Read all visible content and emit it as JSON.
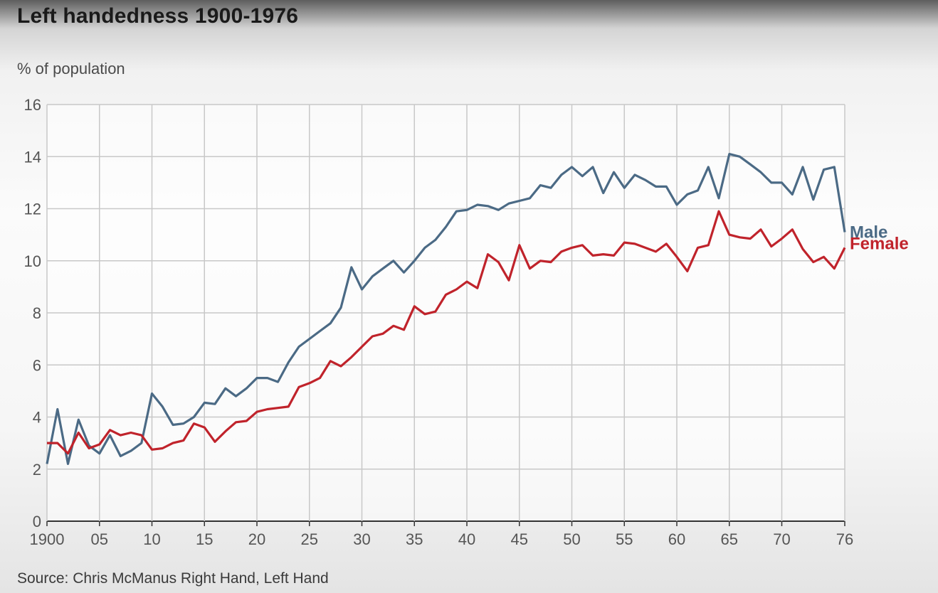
{
  "header": {
    "title": "Left handedness 1900-1976",
    "subtitle": "% of population",
    "source": "Source: Chris McManus Right Hand, Left Hand"
  },
  "chart_data": {
    "type": "line",
    "title": "Left handedness 1900-1976",
    "ylabel": "% of population",
    "xlabel": "",
    "xlim": [
      1900,
      1976
    ],
    "ylim": [
      0,
      16
    ],
    "grid": true,
    "legend": "end-of-line labels at right",
    "yticks": [
      "0",
      "2",
      "4",
      "6",
      "8",
      "10",
      "12",
      "14",
      "16"
    ],
    "xticks": [
      "1900",
      "05",
      "10",
      "15",
      "20",
      "25",
      "30",
      "35",
      "40",
      "45",
      "50",
      "55",
      "60",
      "65",
      "70",
      "76"
    ],
    "x": [
      1900,
      1901,
      1902,
      1903,
      1904,
      1905,
      1906,
      1907,
      1908,
      1909,
      1910,
      1911,
      1912,
      1913,
      1914,
      1915,
      1916,
      1917,
      1918,
      1919,
      1920,
      1921,
      1922,
      1923,
      1924,
      1925,
      1926,
      1927,
      1928,
      1929,
      1930,
      1931,
      1932,
      1933,
      1934,
      1935,
      1936,
      1937,
      1938,
      1939,
      1940,
      1941,
      1942,
      1943,
      1944,
      1945,
      1946,
      1947,
      1948,
      1949,
      1950,
      1951,
      1952,
      1953,
      1954,
      1955,
      1956,
      1957,
      1958,
      1959,
      1960,
      1961,
      1962,
      1963,
      1964,
      1965,
      1966,
      1967,
      1968,
      1969,
      1970,
      1971,
      1972,
      1973,
      1974,
      1975,
      1976
    ],
    "series": [
      {
        "name": "Male",
        "color": "#4b6a85",
        "values": [
          2.2,
          4.3,
          2.2,
          3.9,
          2.9,
          2.6,
          3.3,
          2.5,
          2.7,
          3.0,
          4.9,
          4.4,
          3.7,
          3.75,
          4.0,
          4.55,
          4.5,
          5.1,
          4.8,
          5.1,
          5.5,
          5.5,
          5.35,
          6.1,
          6.7,
          7.0,
          7.3,
          7.6,
          8.2,
          9.75,
          8.9,
          9.4,
          9.7,
          10.0,
          9.55,
          10.0,
          10.5,
          10.8,
          11.3,
          11.9,
          11.95,
          12.15,
          12.1,
          11.95,
          12.2,
          12.3,
          12.4,
          12.9,
          12.8,
          13.3,
          13.6,
          13.25,
          13.6,
          12.6,
          13.4,
          12.8,
          13.3,
          13.1,
          12.85,
          12.85,
          12.15,
          12.55,
          12.7,
          13.6,
          12.4,
          14.1,
          14.0,
          13.7,
          13.4,
          13.0,
          13.0,
          12.55,
          13.6,
          12.35,
          13.5,
          13.6,
          11.1
        ]
      },
      {
        "name": "Female",
        "color": "#c0232b",
        "values": [
          3.0,
          3.0,
          2.6,
          3.4,
          2.8,
          2.95,
          3.5,
          3.3,
          3.4,
          3.3,
          2.75,
          2.8,
          3.0,
          3.1,
          3.75,
          3.6,
          3.05,
          3.45,
          3.8,
          3.85,
          4.2,
          4.3,
          4.35,
          4.4,
          5.15,
          5.3,
          5.5,
          6.15,
          5.95,
          6.3,
          6.7,
          7.1,
          7.2,
          7.5,
          7.35,
          8.25,
          7.95,
          8.05,
          8.7,
          8.9,
          9.2,
          8.95,
          10.25,
          9.95,
          9.25,
          10.6,
          9.7,
          10.0,
          9.95,
          10.35,
          10.5,
          10.6,
          10.2,
          10.25,
          10.2,
          10.7,
          10.65,
          10.5,
          10.35,
          10.65,
          10.15,
          9.6,
          10.5,
          10.6,
          11.9,
          11.0,
          10.9,
          10.85,
          11.2,
          10.55,
          10.85,
          11.2,
          10.45,
          9.95,
          10.15,
          9.7,
          10.5
        ]
      }
    ]
  }
}
